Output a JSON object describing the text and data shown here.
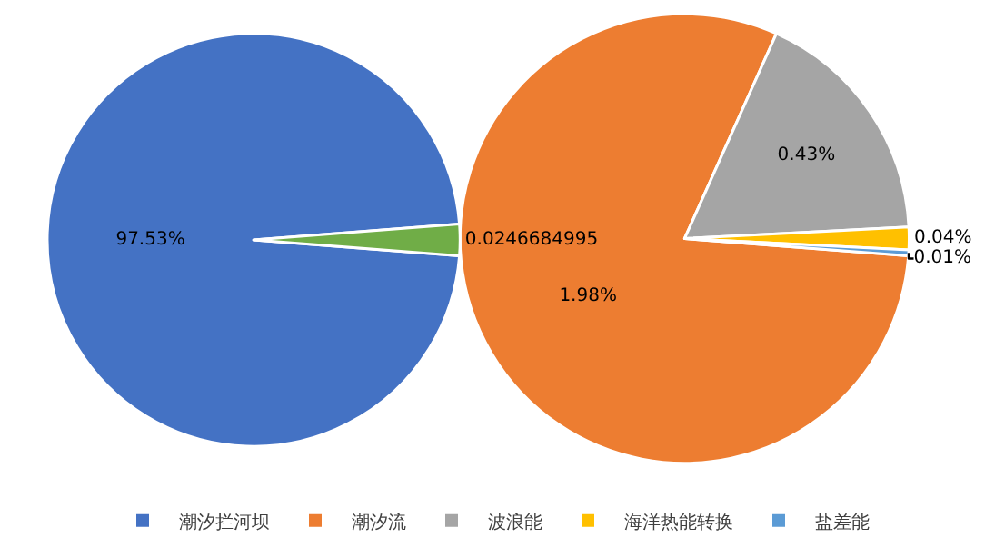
{
  "chart_data": [
    {
      "type": "pie",
      "categories": [
        "潮汐拦河坝",
        null
      ],
      "values": [
        0.9753,
        0.0246684995
      ],
      "colors": [
        "#4472c4",
        "#70ad47"
      ],
      "value_labels": [
        "97.53%",
        "0.0246684995"
      ],
      "legend": "bottom"
    },
    {
      "type": "pie",
      "categories": [
        "潮汐流",
        "波浪能",
        "海洋热能转换",
        "盐差能"
      ],
      "values": [
        1.98,
        0.43,
        0.04,
        0.01
      ],
      "colors": [
        "#ed7d31",
        "#a5a5a5",
        "#ffc000",
        "#5b9bd5"
      ],
      "value_labels": [
        "1.98%",
        "0.43%",
        "0.04%",
        "0.01%"
      ],
      "legend": "bottom"
    }
  ]
}
